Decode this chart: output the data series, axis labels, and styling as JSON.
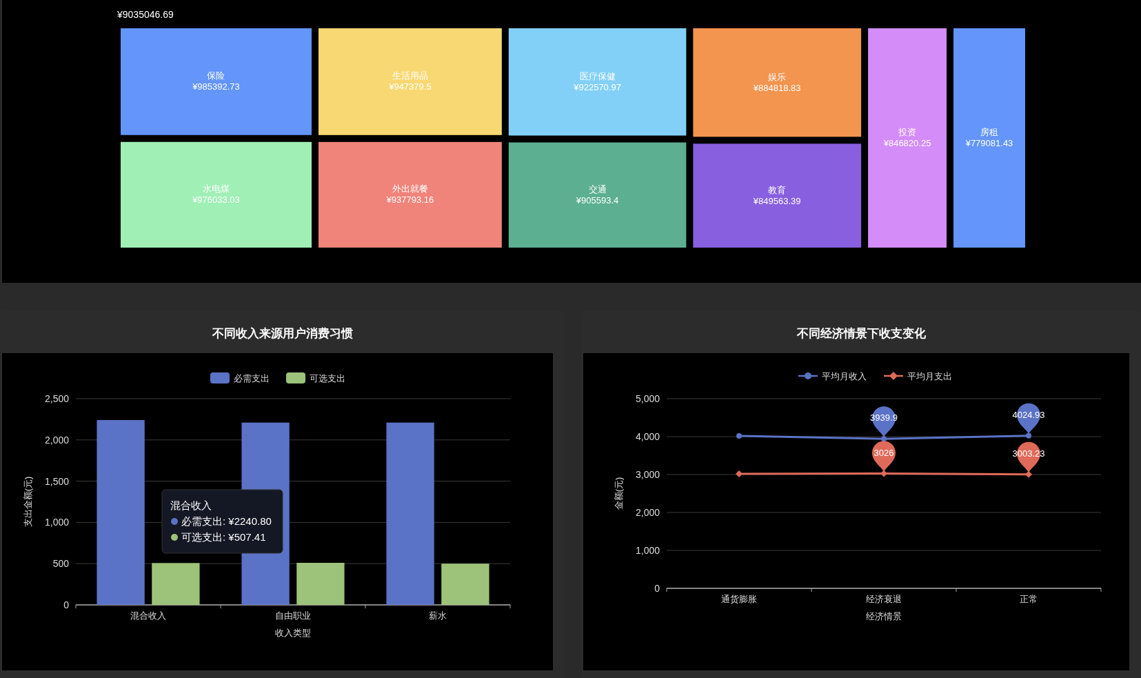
{
  "chart_data": [
    {
      "type": "other",
      "title": "¥9035046.69",
      "categories": [
        "保险",
        "水电煤",
        "生活用品",
        "外出就餐",
        "医疗保健",
        "交通",
        "娱乐",
        "教育",
        "投资",
        "房租"
      ],
      "values": [
        985392.73,
        976033.03,
        947379.5,
        937793.16,
        922570.97,
        905593.4,
        884818.83,
        849563.39,
        846820.25,
        779081.43
      ],
      "value_labels": [
        "¥985392.73",
        "¥976033.03",
        "¥947379.5",
        "¥937793.16",
        "¥922570.97",
        "¥905593.4",
        "¥884818.83",
        "¥849563.39",
        "¥846820.25",
        "¥779081.43"
      ],
      "colors": [
        "#6395fa",
        "#a0efb5",
        "#f7d872",
        "#f0837a",
        "#82d0f7",
        "#5daf92",
        "#f3944f",
        "#875fdf",
        "#d38cf8",
        "#6395fa"
      ]
    },
    {
      "type": "bar",
      "title": "不同收入来源用户消费习惯",
      "xlabel": "收入类型",
      "ylabel": "支出金额(元)",
      "categories": [
        "混合收入",
        "自由职业",
        "薪水"
      ],
      "series": [
        {
          "name": "必需支出",
          "color": "#5b73c6",
          "values": [
            2240.8,
            2210,
            2210
          ]
        },
        {
          "name": "可选支出",
          "color": "#9dc27a",
          "values": [
            507.41,
            510,
            500
          ]
        }
      ],
      "ylim": [
        0,
        2500
      ],
      "yticks": [
        {
          "value": 0,
          "label": "0"
        },
        {
          "value": 500,
          "label": "500"
        },
        {
          "value": 1000,
          "label": "1,000"
        },
        {
          "value": 1500,
          "label": "1,500"
        },
        {
          "value": 2000,
          "label": "2,000"
        },
        {
          "value": 2500,
          "label": "2,500"
        }
      ],
      "grid": "y",
      "legend": "top",
      "annotations": [
        "混合收入",
        "必需支出: ¥2240.80",
        "可选支出: ¥507.41"
      ]
    },
    {
      "type": "line",
      "title": "不同经济情景下收支变化",
      "xlabel": "经济情景",
      "ylabel": "金额(元)",
      "categories": [
        "通货膨胀",
        "经济衰退",
        "正常"
      ],
      "series": [
        {
          "name": "平均月收入",
          "color": "#5b73c6",
          "marker": "circle",
          "values": [
            4020,
            3939.9,
            4024.93
          ],
          "value_labels": [
            null,
            "3939.9",
            "4024.93"
          ]
        },
        {
          "name": "平均月支出",
          "color": "#e06a5a",
          "marker": "diamond",
          "values": [
            3020,
            3026,
            3003.23
          ],
          "value_labels": [
            null,
            "3026",
            "3003.23"
          ]
        }
      ],
      "ylim": [
        0,
        5000
      ],
      "yticks": [
        0,
        {
          "value": 1000,
          "label": "1,000"
        },
        {
          "value": 2000,
          "label": "2,000"
        },
        {
          "value": 3000,
          "label": "3,000"
        },
        {
          "value": 4000,
          "label": "4,000"
        },
        {
          "value": 5000,
          "label": "5,000"
        }
      ],
      "grid": "y",
      "legend": "top"
    }
  ]
}
